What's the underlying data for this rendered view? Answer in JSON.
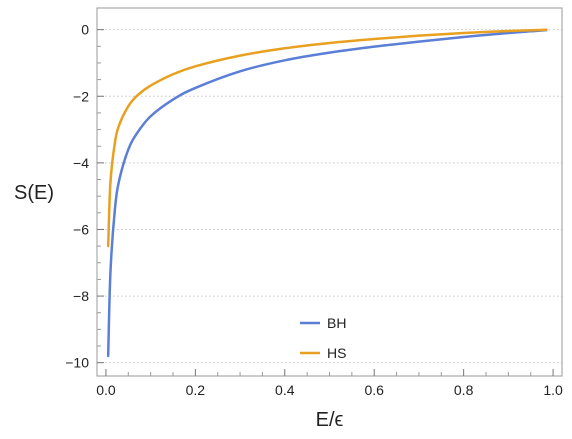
{
  "chart_data": {
    "type": "line",
    "title": "",
    "xlabel": "E/ϵ",
    "ylabel": "S(E)",
    "xlim": [
      -0.02,
      1.02
    ],
    "ylim": [
      -10.4,
      0.65
    ],
    "x_ticks": [
      0.0,
      0.2,
      0.4,
      0.6,
      0.8,
      1.0
    ],
    "x_tick_labels": [
      "0.0",
      "0.2",
      "0.4",
      "0.6",
      "0.8",
      "1.0"
    ],
    "y_ticks": [
      0,
      -2,
      -4,
      -6,
      -8,
      -10
    ],
    "y_tick_labels": [
      "0",
      "−2",
      "−4",
      "−6",
      "−8",
      "−10"
    ],
    "grid": "horizontal dotted",
    "legend_position": "bottom-center",
    "series": [
      {
        "name": "BH",
        "color": "#5b7fd6",
        "x": [
          0.005,
          0.01,
          0.02,
          0.03,
          0.05,
          0.07,
          0.1,
          0.15,
          0.2,
          0.3,
          0.4,
          0.5,
          0.6,
          0.7,
          0.8,
          0.9,
          0.95,
          0.985
        ],
        "y": [
          -9.8,
          -7.3,
          -5.4,
          -4.5,
          -3.6,
          -3.1,
          -2.6,
          -2.1,
          -1.75,
          -1.25,
          -0.92,
          -0.69,
          -0.51,
          -0.36,
          -0.22,
          -0.1,
          -0.05,
          -0.015
        ]
      },
      {
        "name": "HS",
        "color": "#e8a020",
        "x": [
          0.005,
          0.01,
          0.02,
          0.03,
          0.05,
          0.07,
          0.1,
          0.15,
          0.2,
          0.3,
          0.4,
          0.5,
          0.6,
          0.7,
          0.8,
          0.9,
          0.95,
          0.985
        ],
        "y": [
          -6.5,
          -4.6,
          -3.4,
          -2.85,
          -2.3,
          -1.98,
          -1.68,
          -1.34,
          -1.1,
          -0.78,
          -0.56,
          -0.4,
          -0.28,
          -0.18,
          -0.1,
          -0.04,
          -0.02,
          -0.005
        ]
      }
    ]
  }
}
